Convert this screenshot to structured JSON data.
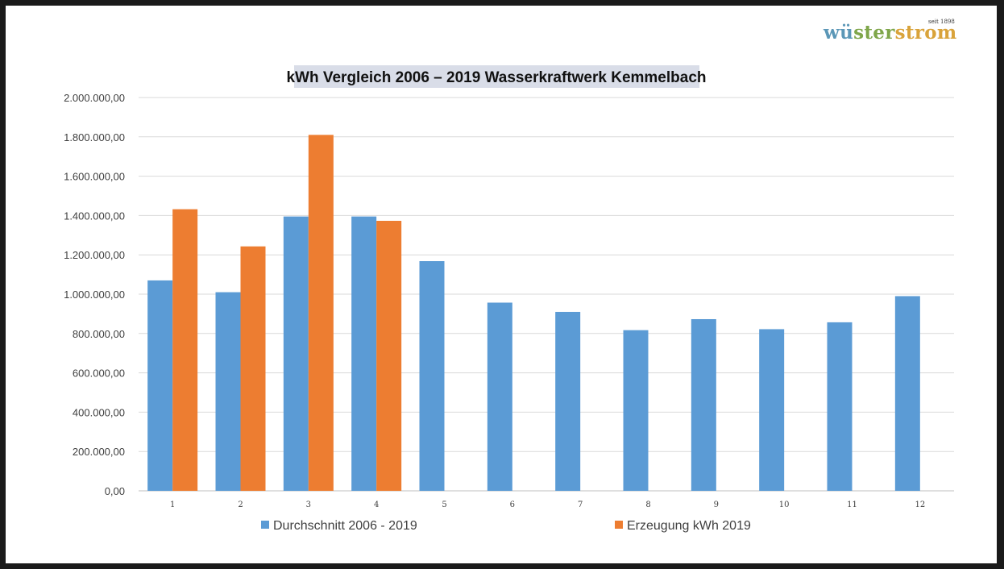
{
  "logo": {
    "part1": "wü",
    "part2": "ster",
    "part3": "strom",
    "tagline": "seit 1898",
    "colors": {
      "part1": "#5b97b7",
      "part2": "#7fa64a",
      "part3": "#d9a33a"
    }
  },
  "chart_data": {
    "type": "bar",
    "title": "kWh Vergleich 2006 – 2019 Wasserkraftwerk Kemmelbach",
    "xlabel": "",
    "ylabel": "",
    "categories": [
      "1",
      "2",
      "3",
      "4",
      "5",
      "6",
      "7",
      "8",
      "9",
      "10",
      "11",
      "12"
    ],
    "series": [
      {
        "name": "Durchschnitt 2006 - 2019",
        "color": "#5b9bd5",
        "values": [
          1070000,
          1010000,
          1395000,
          1395000,
          1168000,
          957000,
          910000,
          817000,
          873000,
          822000,
          857000,
          990000
        ]
      },
      {
        "name": "Erzeugung kWh 2019",
        "color": "#ed7d31",
        "values": [
          1432000,
          1243000,
          1810000,
          1373000,
          null,
          null,
          null,
          null,
          null,
          null,
          null,
          null
        ]
      }
    ],
    "ylim": [
      0,
      2000000
    ],
    "yticks": [
      0,
      200000,
      400000,
      600000,
      800000,
      1000000,
      1200000,
      1400000,
      1600000,
      1800000,
      2000000
    ],
    "ytick_labels": [
      "0,00",
      "200.000,00",
      "400.000,00",
      "600.000,00",
      "800.000,00",
      "1.000.000,00",
      "1.200.000,00",
      "1.400.000,00",
      "1.600.000,00",
      "1.800.000,00",
      "2.000.000,00"
    ],
    "grid": true,
    "legend_position": "bottom"
  }
}
